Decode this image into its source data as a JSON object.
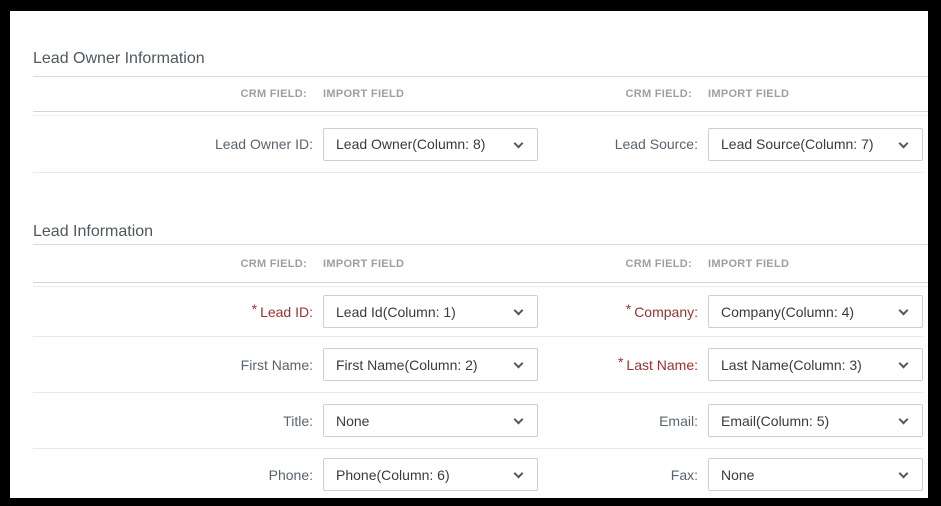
{
  "colors": {
    "frame": "#000000",
    "page_background": "#ffffff",
    "section_title": "#50585f",
    "column_header": "#9ba0a5",
    "field_label": "#5a646e",
    "required_label": "#9a3131",
    "select_text": "#373c42",
    "select_border": "#cfcfcf",
    "divider": "#dcdcdc",
    "row_divider": "#e9e9e9"
  },
  "column_headers": {
    "crm": "CRM FIELD:",
    "import": "IMPORT FIELD"
  },
  "sections": [
    {
      "title": "Lead Owner Information",
      "rows": [
        {
          "left": {
            "req": "",
            "label": "Lead Owner ID:",
            "value": "Lead Owner(Column: 8)"
          },
          "right": {
            "req": "",
            "label": "Lead Source:",
            "value": "Lead Source(Column: 7)"
          }
        }
      ]
    },
    {
      "title": "Lead Information",
      "rows": [
        {
          "left": {
            "req": "*",
            "label": "Lead ID:",
            "value": "Lead Id(Column: 1)"
          },
          "right": {
            "req": "*",
            "label": "Company:",
            "value": "Company(Column: 4)"
          }
        },
        {
          "left": {
            "req": "",
            "label": "First Name:",
            "value": "First Name(Column: 2)"
          },
          "right": {
            "req": "*",
            "label": "Last Name:",
            "value": "Last Name(Column: 3)"
          }
        },
        {
          "left": {
            "req": "",
            "label": "Title:",
            "value": "None"
          },
          "right": {
            "req": "",
            "label": "Email:",
            "value": "Email(Column: 5)"
          }
        },
        {
          "left": {
            "req": "",
            "label": "Phone:",
            "value": "Phone(Column: 6)"
          },
          "right": {
            "req": "",
            "label": "Fax:",
            "value": "None"
          }
        }
      ]
    }
  ]
}
